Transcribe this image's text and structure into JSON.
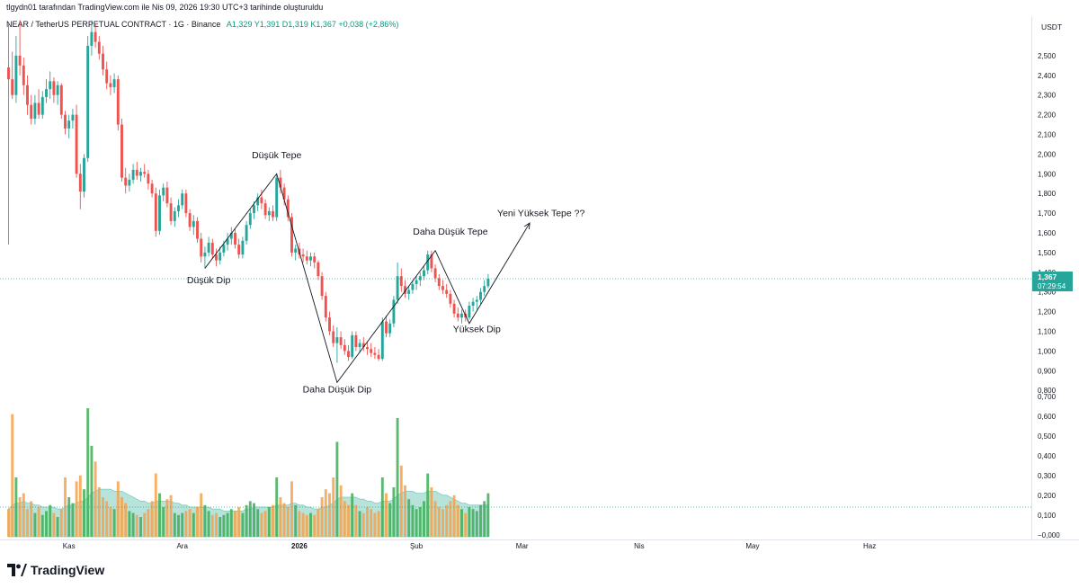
{
  "header": {
    "credit": "tlgydn01 tarafından TradingView.com ile Nis 09, 2026 19:30 UTC+3 tarihinde oluşturuldu",
    "symbol": "NEAR / TetherUS PERPETUAL CONTRACT · 1G · Binance",
    "ohlc": "A1,329  Y1,391  D1,319  K1,367  +0,038 (+2,86%)"
  },
  "footer": {
    "brand": "TradingView"
  },
  "colors": {
    "up": "#26a69a",
    "down": "#ef5350",
    "volume_up": "#3fae57",
    "volume_down": "#f6a14a",
    "volume_ma_fill": "#9fd9cf",
    "price_line": "#26a69a",
    "annotation": "#131722",
    "axis_text": "#131722"
  },
  "chart_data": {
    "type": "candlestick",
    "timeframe": "1G",
    "currency": "USDT",
    "price_axis": {
      "unit": "USDT",
      "range": [
        0.82,
        2.62
      ],
      "ticks": [
        "2,500",
        "2,400",
        "2,300",
        "2,200",
        "2,100",
        "2,000",
        "1,900",
        "1,800",
        "1,700",
        "1,600",
        "1,500",
        "1,400",
        "1,300",
        "1,200",
        "1,100",
        "1,000",
        "0,900",
        "0,800"
      ]
    },
    "volume_axis": {
      "range": [
        0,
        0.7
      ],
      "ticks": [
        "0,700",
        "0,600",
        "0,500",
        "0,400",
        "0,300",
        "0,200",
        "0,100",
        "−0,000"
      ],
      "note": "scale as printed"
    },
    "time_axis": {
      "labels": [
        {
          "text": "Kas",
          "bar": 16
        },
        {
          "text": "Ara",
          "bar": 46
        },
        {
          "text": "2026",
          "bar": 77
        },
        {
          "text": "Şub",
          "bar": 108
        },
        {
          "text": "Mar",
          "bar": 136
        },
        {
          "text": "Nis",
          "bar": 167
        },
        {
          "text": "May",
          "bar": 197
        },
        {
          "text": "Haz",
          "bar": 228
        }
      ],
      "bold_label": "2026"
    },
    "last_price": {
      "value": 1.367,
      "label": "1,367",
      "countdown": "07:29:54"
    },
    "candles": [
      [
        2.44,
        2.66,
        1.54,
        2.38
      ],
      [
        2.38,
        2.52,
        2.28,
        2.3
      ],
      [
        2.3,
        2.6,
        2.26,
        2.5
      ],
      [
        2.5,
        2.68,
        2.4,
        2.45
      ],
      [
        2.45,
        2.49,
        2.3,
        2.35
      ],
      [
        2.35,
        2.4,
        2.2,
        2.25
      ],
      [
        2.25,
        2.3,
        2.15,
        2.18
      ],
      [
        2.18,
        2.3,
        2.15,
        2.26
      ],
      [
        2.26,
        2.33,
        2.18,
        2.2
      ],
      [
        2.2,
        2.32,
        2.18,
        2.29
      ],
      [
        2.29,
        2.38,
        2.26,
        2.33
      ],
      [
        2.33,
        2.42,
        2.28,
        2.37
      ],
      [
        2.37,
        2.39,
        2.26,
        2.3
      ],
      [
        2.3,
        2.37,
        2.25,
        2.35
      ],
      [
        2.35,
        2.36,
        2.18,
        2.2
      ],
      [
        2.2,
        2.22,
        2.1,
        2.13
      ],
      [
        2.13,
        2.2,
        2.08,
        2.17
      ],
      [
        2.17,
        2.23,
        2.13,
        2.2
      ],
      [
        2.2,
        2.25,
        1.88,
        1.9
      ],
      [
        1.9,
        1.95,
        1.72,
        1.81
      ],
      [
        1.81,
        2.0,
        1.78,
        1.98
      ],
      [
        1.98,
        2.6,
        1.96,
        2.55
      ],
      [
        2.55,
        2.68,
        2.5,
        2.62
      ],
      [
        2.62,
        2.66,
        2.54,
        2.57
      ],
      [
        2.57,
        2.6,
        2.48,
        2.51
      ],
      [
        2.51,
        2.55,
        2.4,
        2.43
      ],
      [
        2.43,
        2.47,
        2.33,
        2.36
      ],
      [
        2.36,
        2.4,
        2.3,
        2.34
      ],
      [
        2.34,
        2.41,
        2.31,
        2.38
      ],
      [
        2.38,
        2.4,
        2.12,
        2.15
      ],
      [
        2.15,
        2.18,
        1.86,
        1.88
      ],
      [
        1.88,
        1.93,
        1.8,
        1.84
      ],
      [
        1.84,
        1.9,
        1.81,
        1.87
      ],
      [
        1.87,
        1.95,
        1.85,
        1.92
      ],
      [
        1.92,
        1.96,
        1.87,
        1.89
      ],
      [
        1.89,
        1.93,
        1.86,
        1.91
      ],
      [
        1.91,
        1.95,
        1.88,
        1.9
      ],
      [
        1.9,
        1.92,
        1.82,
        1.85
      ],
      [
        1.85,
        1.87,
        1.78,
        1.8
      ],
      [
        1.8,
        1.83,
        1.58,
        1.61
      ],
      [
        1.61,
        1.82,
        1.59,
        1.79
      ],
      [
        1.79,
        1.85,
        1.76,
        1.83
      ],
      [
        1.83,
        1.86,
        1.73,
        1.75
      ],
      [
        1.75,
        1.78,
        1.64,
        1.66
      ],
      [
        1.66,
        1.73,
        1.63,
        1.71
      ],
      [
        1.71,
        1.77,
        1.68,
        1.74
      ],
      [
        1.74,
        1.82,
        1.72,
        1.8
      ],
      [
        1.8,
        1.82,
        1.68,
        1.7
      ],
      [
        1.7,
        1.72,
        1.61,
        1.63
      ],
      [
        1.63,
        1.69,
        1.59,
        1.66
      ],
      [
        1.66,
        1.68,
        1.55,
        1.57
      ],
      [
        1.57,
        1.6,
        1.45,
        1.48
      ],
      [
        1.48,
        1.53,
        1.42,
        1.5
      ],
      [
        1.5,
        1.58,
        1.48,
        1.55
      ],
      [
        1.55,
        1.57,
        1.47,
        1.49
      ],
      [
        1.49,
        1.52,
        1.43,
        1.46
      ],
      [
        1.46,
        1.53,
        1.44,
        1.5
      ],
      [
        1.5,
        1.56,
        1.48,
        1.54
      ],
      [
        1.54,
        1.6,
        1.51,
        1.57
      ],
      [
        1.57,
        1.63,
        1.54,
        1.6
      ],
      [
        1.6,
        1.62,
        1.52,
        1.54
      ],
      [
        1.54,
        1.57,
        1.47,
        1.49
      ],
      [
        1.49,
        1.58,
        1.47,
        1.56
      ],
      [
        1.56,
        1.66,
        1.54,
        1.64
      ],
      [
        1.64,
        1.72,
        1.62,
        1.7
      ],
      [
        1.7,
        1.76,
        1.67,
        1.74
      ],
      [
        1.74,
        1.8,
        1.71,
        1.78
      ],
      [
        1.78,
        1.82,
        1.72,
        1.75
      ],
      [
        1.75,
        1.77,
        1.67,
        1.69
      ],
      [
        1.69,
        1.73,
        1.66,
        1.71
      ],
      [
        1.71,
        1.74,
        1.66,
        1.68
      ],
      [
        1.68,
        1.9,
        1.66,
        1.88
      ],
      [
        1.88,
        1.92,
        1.8,
        1.83
      ],
      [
        1.83,
        1.85,
        1.74,
        1.77
      ],
      [
        1.77,
        1.79,
        1.66,
        1.68
      ],
      [
        1.68,
        1.7,
        1.48,
        1.5
      ],
      [
        1.5,
        1.54,
        1.46,
        1.52
      ],
      [
        1.52,
        1.55,
        1.47,
        1.49
      ],
      [
        1.49,
        1.52,
        1.45,
        1.48
      ],
      [
        1.48,
        1.51,
        1.44,
        1.46
      ],
      [
        1.46,
        1.5,
        1.43,
        1.48
      ],
      [
        1.48,
        1.5,
        1.42,
        1.45
      ],
      [
        1.45,
        1.46,
        1.36,
        1.38
      ],
      [
        1.38,
        1.4,
        1.26,
        1.28
      ],
      [
        1.28,
        1.3,
        1.15,
        1.17
      ],
      [
        1.17,
        1.2,
        1.08,
        1.1
      ],
      [
        1.1,
        1.13,
        1.02,
        1.04
      ],
      [
        1.04,
        1.12,
        0.94,
        1.07
      ],
      [
        1.07,
        1.1,
        1.01,
        1.03
      ],
      [
        1.03,
        1.06,
        0.98,
        1.0
      ],
      [
        1.0,
        1.03,
        0.95,
        0.97
      ],
      [
        0.97,
        1.1,
        0.96,
        1.08
      ],
      [
        1.08,
        1.1,
        1.0,
        1.02
      ],
      [
        1.02,
        1.06,
        0.99,
        1.04
      ],
      [
        1.04,
        1.07,
        1.0,
        1.02
      ],
      [
        1.02,
        1.05,
        0.98,
        1.01
      ],
      [
        1.01,
        1.04,
        0.97,
        0.99
      ],
      [
        0.99,
        1.02,
        0.96,
        0.98
      ],
      [
        0.98,
        1.01,
        0.95,
        0.96
      ],
      [
        0.96,
        1.17,
        0.95,
        1.15
      ],
      [
        1.15,
        1.18,
        1.07,
        1.09
      ],
      [
        1.09,
        1.16,
        1.07,
        1.14
      ],
      [
        1.14,
        1.28,
        1.12,
        1.26
      ],
      [
        1.26,
        1.45,
        1.24,
        1.38
      ],
      [
        1.38,
        1.42,
        1.3,
        1.33
      ],
      [
        1.33,
        1.36,
        1.27,
        1.29
      ],
      [
        1.29,
        1.33,
        1.26,
        1.31
      ],
      [
        1.31,
        1.36,
        1.29,
        1.34
      ],
      [
        1.34,
        1.38,
        1.31,
        1.36
      ],
      [
        1.36,
        1.4,
        1.33,
        1.38
      ],
      [
        1.38,
        1.43,
        1.36,
        1.41
      ],
      [
        1.41,
        1.51,
        1.39,
        1.49
      ],
      [
        1.49,
        1.51,
        1.4,
        1.42
      ],
      [
        1.42,
        1.44,
        1.35,
        1.37
      ],
      [
        1.37,
        1.39,
        1.31,
        1.33
      ],
      [
        1.33,
        1.36,
        1.29,
        1.31
      ],
      [
        1.31,
        1.34,
        1.27,
        1.29
      ],
      [
        1.29,
        1.31,
        1.22,
        1.24
      ],
      [
        1.24,
        1.26,
        1.17,
        1.19
      ],
      [
        1.19,
        1.22,
        1.15,
        1.17
      ],
      [
        1.17,
        1.21,
        1.14,
        1.19
      ],
      [
        1.19,
        1.21,
        1.15,
        1.17
      ],
      [
        1.17,
        1.25,
        1.16,
        1.23
      ],
      [
        1.23,
        1.27,
        1.2,
        1.25
      ],
      [
        1.25,
        1.28,
        1.21,
        1.26
      ],
      [
        1.26,
        1.32,
        1.24,
        1.3
      ],
      [
        1.3,
        1.36,
        1.28,
        1.33
      ],
      [
        1.329,
        1.391,
        1.319,
        1.367
      ]
    ],
    "volume": [
      0.14,
      0.62,
      0.3,
      0.2,
      0.22,
      0.14,
      0.18,
      0.12,
      0.15,
      0.11,
      0.13,
      0.16,
      0.12,
      0.1,
      0.14,
      0.3,
      0.2,
      0.17,
      0.28,
      0.31,
      0.24,
      0.65,
      0.46,
      0.38,
      0.25,
      0.2,
      0.18,
      0.15,
      0.14,
      0.28,
      0.2,
      0.17,
      0.13,
      0.12,
      0.11,
      0.1,
      0.12,
      0.14,
      0.18,
      0.32,
      0.22,
      0.15,
      0.19,
      0.21,
      0.12,
      0.11,
      0.12,
      0.13,
      0.14,
      0.12,
      0.15,
      0.22,
      0.16,
      0.13,
      0.11,
      0.12,
      0.1,
      0.11,
      0.12,
      0.14,
      0.13,
      0.15,
      0.12,
      0.16,
      0.18,
      0.17,
      0.14,
      0.12,
      0.13,
      0.15,
      0.16,
      0.3,
      0.2,
      0.17,
      0.15,
      0.28,
      0.16,
      0.13,
      0.12,
      0.11,
      0.12,
      0.11,
      0.14,
      0.2,
      0.24,
      0.22,
      0.3,
      0.48,
      0.26,
      0.18,
      0.16,
      0.22,
      0.16,
      0.13,
      0.12,
      0.15,
      0.14,
      0.12,
      0.13,
      0.3,
      0.22,
      0.17,
      0.25,
      0.6,
      0.36,
      0.26,
      0.19,
      0.16,
      0.14,
      0.15,
      0.18,
      0.32,
      0.25,
      0.18,
      0.15,
      0.14,
      0.16,
      0.18,
      0.21,
      0.16,
      0.14,
      0.12,
      0.15,
      0.14,
      0.13,
      0.16,
      0.18,
      0.22
    ],
    "volume_ma": [
      0.14,
      0.16,
      0.17,
      0.17,
      0.18,
      0.17,
      0.17,
      0.16,
      0.16,
      0.15,
      0.15,
      0.15,
      0.15,
      0.14,
      0.14,
      0.15,
      0.16,
      0.16,
      0.17,
      0.18,
      0.18,
      0.2,
      0.22,
      0.23,
      0.24,
      0.24,
      0.24,
      0.24,
      0.23,
      0.23,
      0.23,
      0.22,
      0.21,
      0.2,
      0.19,
      0.18,
      0.18,
      0.17,
      0.17,
      0.18,
      0.18,
      0.18,
      0.18,
      0.18,
      0.17,
      0.17,
      0.16,
      0.16,
      0.15,
      0.15,
      0.15,
      0.15,
      0.15,
      0.15,
      0.14,
      0.14,
      0.14,
      0.13,
      0.13,
      0.13,
      0.13,
      0.13,
      0.13,
      0.14,
      0.14,
      0.15,
      0.15,
      0.15,
      0.15,
      0.15,
      0.15,
      0.16,
      0.16,
      0.16,
      0.16,
      0.17,
      0.17,
      0.16,
      0.16,
      0.15,
      0.15,
      0.14,
      0.14,
      0.15,
      0.15,
      0.16,
      0.17,
      0.19,
      0.2,
      0.2,
      0.2,
      0.2,
      0.2,
      0.19,
      0.19,
      0.18,
      0.18,
      0.17,
      0.17,
      0.18,
      0.18,
      0.18,
      0.19,
      0.21,
      0.22,
      0.23,
      0.23,
      0.23,
      0.22,
      0.22,
      0.22,
      0.23,
      0.23,
      0.23,
      0.22,
      0.21,
      0.21,
      0.2,
      0.19,
      0.18,
      0.17,
      0.17,
      0.16,
      0.16,
      0.16,
      0.16,
      0.16,
      0.16
    ],
    "volume_reference_line": 0.15,
    "annotations": {
      "labels": [
        {
          "text": "Düşük Tepe",
          "bar": 71,
          "price": 1.98
        },
        {
          "text": "Düşük Dip",
          "bar": 53,
          "price": 1.345
        },
        {
          "text": "Daha Düşük Dip",
          "bar": 87,
          "price": 0.79
        },
        {
          "text": "Daha Düşük Tepe",
          "bar": 117,
          "price": 1.59
        },
        {
          "text": "Yüksek Dip",
          "bar": 124,
          "price": 1.095
        },
        {
          "text": "Yeni Yüksek Tepe ??",
          "bar": 141,
          "price": 1.685
        }
      ],
      "zigzag": [
        {
          "bar": 52,
          "price": 1.42
        },
        {
          "bar": 71,
          "price": 1.9
        },
        {
          "bar": 87,
          "price": 0.84
        },
        {
          "bar": 113,
          "price": 1.51
        },
        {
          "bar": 122,
          "price": 1.14
        },
        {
          "bar": 138,
          "price": 1.65
        }
      ],
      "projection_arrow": true
    }
  }
}
